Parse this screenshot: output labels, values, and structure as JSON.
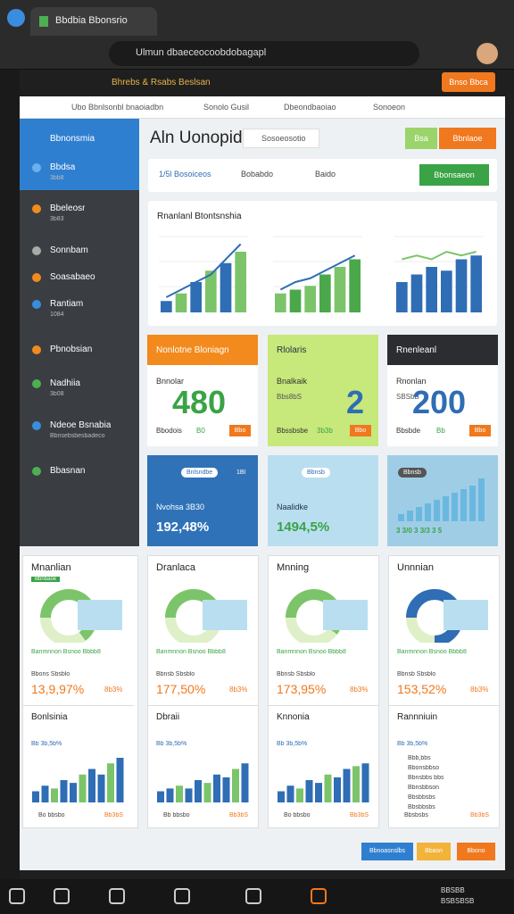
{
  "browser": {
    "tab_title": "Bbdbia Bbonsrio",
    "url": "Ulmun dbaeceocoobdobagapl"
  },
  "toolbar": {
    "title": "Bhrebs & Rsabs Beslsan",
    "button": "Bnso Bbca"
  },
  "tabs": [
    "Ubo Bbnlsonbl bnaoiadbn",
    "Sonolo Gusil",
    "Dbeondbaoiao",
    "Sonoeon"
  ],
  "sidebar": {
    "title": "Bbnonsmia",
    "items": [
      {
        "label": "Bbdsa",
        "sub": "3bb8"
      },
      {
        "label": "Bbeleosr",
        "sub": "3b83"
      },
      {
        "label": "Sonnbam"
      },
      {
        "label": "Soasabaeo"
      },
      {
        "label": "Rantiam",
        "sub": "1084"
      },
      {
        "label": "Pbnobsian"
      },
      {
        "label": "Nadhiia",
        "sub": "3b08"
      },
      {
        "label": "Ndeoe Bsnabia",
        "sub": "Bbnsebsbesbadeco"
      },
      {
        "label": "Bbasnan"
      }
    ]
  },
  "header": {
    "title": "Aln Uonopidai",
    "search": "Sosoeosotio",
    "buttons": [
      "Bsa",
      "Bbnlaoe"
    ]
  },
  "filters": {
    "items": [
      "1/5l Bosoiceos",
      "Bobabdo",
      "Baido"
    ],
    "button": "Bbonsaeon"
  },
  "overview": {
    "title": "Rnanlanl Btontsnshia",
    "ylim": [
      0,
      10
    ],
    "charts": [
      {
        "bars": [
          1.5,
          2.5,
          4,
          5.5,
          6.5,
          8
        ],
        "line": [
          2,
          3,
          4,
          5,
          7,
          9
        ],
        "colors": [
          "#2f6db5",
          "#7cc46a"
        ]
      },
      {
        "bars": [
          2.5,
          3,
          3.5,
          5,
          6,
          7
        ],
        "line": [
          3,
          4,
          4.5,
          5.5,
          6.5,
          7.5
        ],
        "colors": [
          "#7cc46a",
          "#4aa84a"
        ]
      },
      {
        "bars": [
          4,
          5,
          6,
          5.5,
          7,
          7.5
        ],
        "line": [
          7,
          7.5,
          7,
          8,
          7.5,
          8
        ],
        "colors": [
          "#2f6db5",
          "#2f6db5"
        ]
      }
    ]
  },
  "stat_cards": [
    {
      "header": "Nonlotne Bloniagn",
      "label": "Bnnolar",
      "value": "480",
      "foot": "Bbodois",
      "foot_value": "B0",
      "button": "Bbo",
      "header_color": "#f28a1e",
      "value_color": "#3aa346"
    },
    {
      "header": "Rlolaris",
      "label": "Bnalkaik",
      "sub": "Bbs8bS",
      "value": "2",
      "foot": "Bbssbsbe",
      "foot_value": "3b3b",
      "button": "Bbo",
      "header_color": "#c7e87a",
      "value_color": "#2f6db5"
    },
    {
      "header": "Rnenleanl",
      "label": "Rnonlan",
      "sub": "SBSbB",
      "value": "200",
      "foot": "Bbsbde",
      "foot_value": "Bb",
      "button": "Bbo",
      "header_color": "#2b2d31",
      "value_color": "#2f6db5"
    }
  ],
  "kpi_cards": [
    {
      "badge": "Bnlsndbe",
      "note": "1Bl",
      "label": "Nvohsa 3B30",
      "value": "192,48%",
      "color": "#2f72b8"
    },
    {
      "badge": "Bbnsb",
      "label": "Naalidke",
      "value": "1494,5%",
      "color": "#b9def0"
    },
    {
      "badge": "Bbnsb",
      "value": "3 3/0 3 3/3 3 5",
      "color": "#9fcde6",
      "bars": [
        1,
        1.5,
        2,
        2.5,
        3,
        3.5,
        4,
        4.5,
        5,
        6
      ]
    }
  ],
  "panels": {
    "gauge_range": [
      0,
      100
    ],
    "items": [
      {
        "title": "Mnanlian",
        "tag": "Bbnbaoe",
        "gauge": 65,
        "label": "Banmnnon Bsnoo Bbbb8",
        "sub": "Bbons Sbsblo",
        "value": "13,9,97%",
        "badge": "8b3%",
        "bottom_title": "Bonlsinia",
        "legend": "Bb 3b,5b%",
        "bars": [
          2,
          3,
          2.5,
          4,
          3.5,
          5,
          6,
          5,
          7,
          8
        ],
        "foot": "Bo bbsbo",
        "foot_value": "Bb3bS"
      },
      {
        "title": "Dranlaca",
        "gauge": 55,
        "label": "Banmnnon Bsnoo Bbbb8",
        "sub": "Bbnsb Sbsblo",
        "value": "177,50%",
        "badge": "8b3%",
        "bottom_title": "Dbraii",
        "legend": "Bb 3b,5b%",
        "bars": [
          2,
          2.5,
          3,
          2.5,
          4,
          3.5,
          5,
          4.5,
          6,
          7
        ],
        "foot": "Bb bbsbo",
        "foot_value": "Bb3bS"
      },
      {
        "title": "Mnning",
        "gauge": 60,
        "label": "Banmnnon Bsnoo Bbbb8",
        "sub": "Bbnsb Sbsblo",
        "value": "173,95%",
        "badge": "8b3%",
        "bottom_title": "Knnonia",
        "legend": "Bb 3b,5b%",
        "bars": [
          2,
          3,
          2.5,
          4,
          3.5,
          5,
          4.5,
          6,
          6.5,
          7
        ],
        "foot": "Bo bbsbo",
        "foot_value": "Bb3bS"
      },
      {
        "title": "Unnnian",
        "gauge": 75,
        "label": "Banmnnon Bsnoo Bbbb8",
        "sub": "Bbnsb Sbsblo",
        "value": "153,52%",
        "badge": "8b3%",
        "bottom_title": "Rannniuin",
        "legend": "Bb 3b,5b%",
        "list": [
          "Bbb,bbs",
          "Bbonsbbso",
          "Bbnsbbs bbs",
          "Bbnsbbson",
          "Bbsbbsbs",
          "Bbsbbsbs"
        ],
        "foot": "Bbsbsbs",
        "foot_value": "Bb3bS"
      }
    ]
  },
  "footer_buttons": [
    "Bbnoasnslbs",
    "Bbasn",
    "Bbono"
  ],
  "taskbar": {
    "time": "BBSBB",
    "date": "BSBSBSB"
  }
}
